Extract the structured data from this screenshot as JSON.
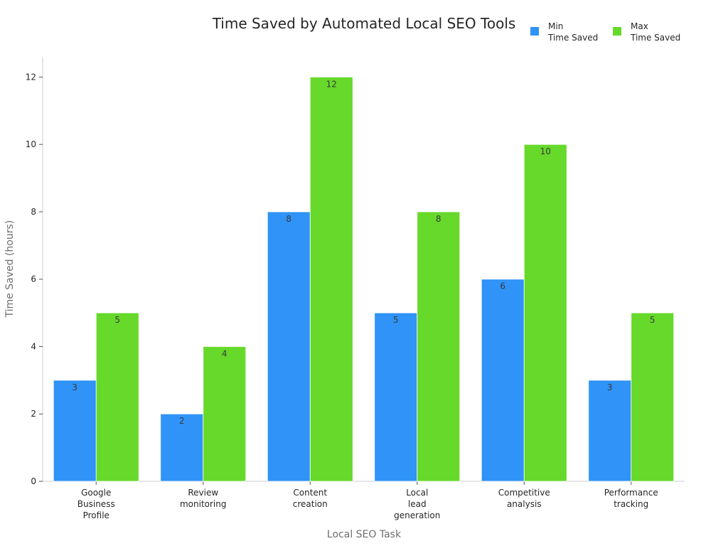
{
  "chart_data": {
    "type": "bar",
    "title": "Time Saved by Automated Local SEO Tools",
    "xlabel": "Local SEO Task",
    "ylabel": "Time Saved (hours)",
    "ylim": [
      0,
      12.6
    ],
    "yticks": [
      0,
      2,
      4,
      6,
      8,
      10,
      12
    ],
    "grid": false,
    "legend_position": "top-right",
    "categories": [
      [
        "Google",
        "Business",
        "Profile"
      ],
      [
        "Review",
        "monitoring"
      ],
      [
        "Content",
        "creation"
      ],
      [
        "Local",
        "lead",
        "generation"
      ],
      [
        "Competitive",
        "analysis"
      ],
      [
        "Performance",
        "tracking"
      ]
    ],
    "series": [
      {
        "name": [
          "Min",
          "Time Saved"
        ],
        "color": "#2f93f7",
        "values": [
          3,
          2,
          8,
          5,
          6,
          3
        ]
      },
      {
        "name": [
          "Max",
          "Time Saved"
        ],
        "color": "#66d92a",
        "values": [
          5,
          4,
          12,
          8,
          10,
          5
        ]
      }
    ]
  }
}
